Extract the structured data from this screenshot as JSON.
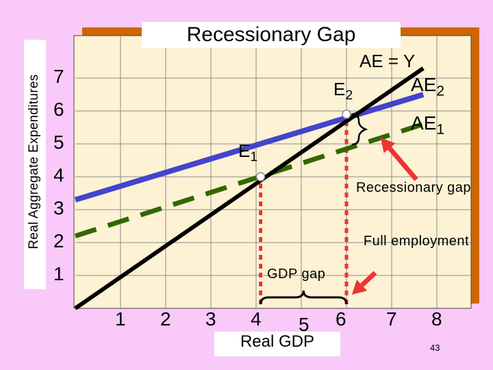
{
  "title": "Recessionary Gap",
  "page_number": "43",
  "colors": {
    "background": "#f9c9f9",
    "plot_panel": "#fdf2d4",
    "panel_shadow": "#cc6600",
    "ae2_line": "#4444cc",
    "ae1_line": "#336600",
    "ae_y_line": "#000000",
    "dotted_lines": "#ee3333",
    "arrows": "#ee3333"
  },
  "chart_data": {
    "type": "line",
    "title": "Recessionary Gap",
    "xlabel": "Real GDP",
    "ylabel": "Real Aggregate Expenditures",
    "xlim": [
      0,
      8
    ],
    "ylim": [
      0,
      7.5
    ],
    "x_ticks": [
      "1",
      "2",
      "3",
      "4",
      "5",
      "6",
      "7",
      "8"
    ],
    "y_ticks": [
      "1",
      "2",
      "3",
      "4",
      "5",
      "6",
      "7"
    ],
    "grid": true,
    "series": [
      {
        "name": "AE = Y",
        "style": "solid",
        "color": "#000000",
        "x": [
          0,
          7.7
        ],
        "y": [
          0,
          7.3
        ]
      },
      {
        "name": "AE2",
        "style": "solid",
        "color": "#4444cc",
        "x": [
          0,
          7.7
        ],
        "y": [
          3.3,
          6.5
        ]
      },
      {
        "name": "AE1",
        "style": "dashed",
        "color": "#336600",
        "x": [
          0,
          7.7
        ],
        "y": [
          2.2,
          5.6
        ]
      }
    ],
    "points": [
      {
        "label": "E1",
        "x": 4.1,
        "y": 4.0
      },
      {
        "label": "E2",
        "x": 6.0,
        "y": 5.9
      }
    ],
    "vertical_lines": [
      {
        "x": 4.1,
        "ymax": 4.0
      },
      {
        "x": 6.0,
        "ymax": 5.9
      }
    ],
    "annotations": {
      "recessionary_gap": "Recessionary gap",
      "full_employment": "Full employment",
      "gdp_gap": "GDP gap"
    }
  }
}
